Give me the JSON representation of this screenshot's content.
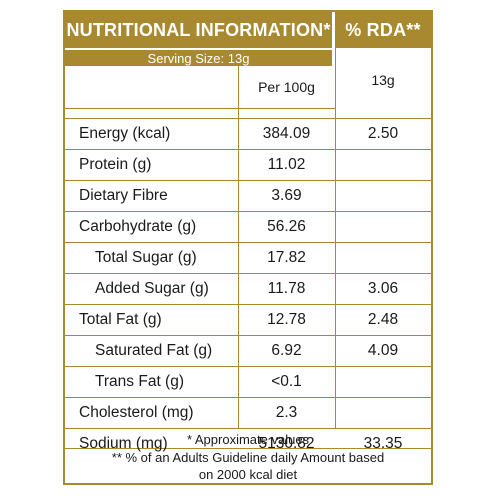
{
  "header": {
    "title": "NUTRITIONAL INFORMATION*",
    "rda": "% RDA**"
  },
  "serving": "Serving Size:  13g",
  "columns": {
    "per100": "Per  100g",
    "per13": "13g"
  },
  "rows": [
    {
      "name": "Energy (kcal)",
      "value": "384.09",
      "rda": "2.50"
    },
    {
      "name": "Protein (g)",
      "value": "11.02",
      "rda": ""
    },
    {
      "name": "Dietary Fibre",
      "value": "3.69",
      "rda": ""
    },
    {
      "name": "Carbohydrate (g)",
      "value": "56.26",
      "rda": ""
    },
    {
      "name": "Total Sugar (g)",
      "value": "17.82",
      "rda": ""
    },
    {
      "name": "Added Sugar (g)",
      "value": "11.78",
      "rda": "3.06"
    },
    {
      "name": "Total Fat (g)",
      "value": "12.78",
      "rda": "2.48"
    },
    {
      "name": "Saturated Fat (g)",
      "value": "6.92",
      "rda": "4.09"
    },
    {
      "name": "Trans Fat (g)",
      "value": "<0.1",
      "rda": ""
    },
    {
      "name": "Cholesterol (mg)",
      "value": "2.3",
      "rda": ""
    },
    {
      "name": "Sodium (mg)",
      "value": "5130.82",
      "rda": "33.35"
    }
  ],
  "footnotes": {
    "approx": "* Approximate values",
    "rda_line1": "** % of an Adults Guideline daily Amount based",
    "rda_line2": "on 2000 kcal diet"
  },
  "colors": {
    "accent": "#a8892f"
  }
}
